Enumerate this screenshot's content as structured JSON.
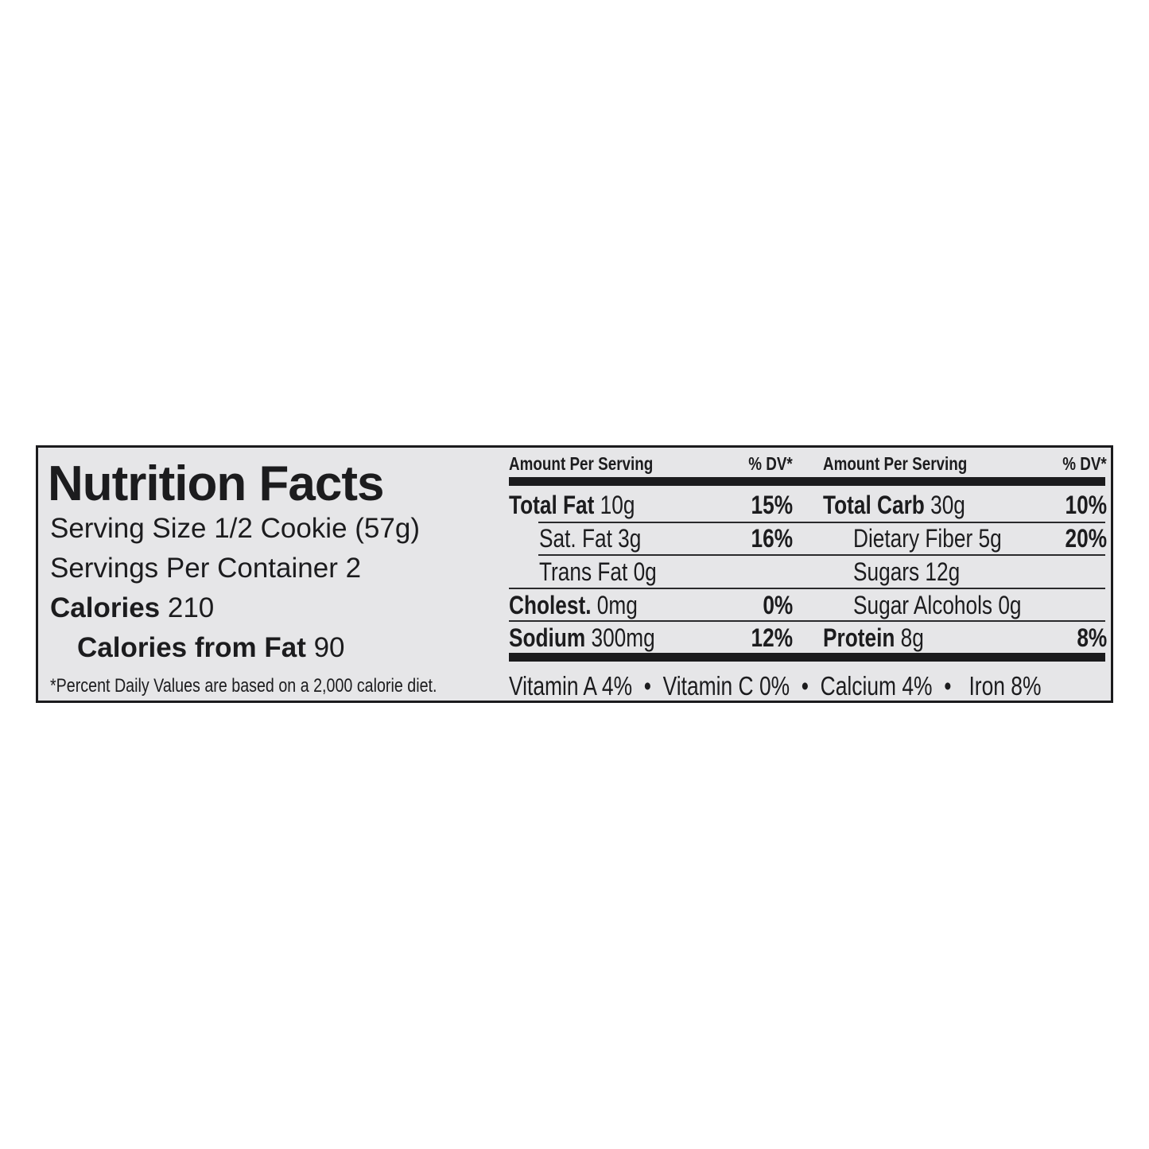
{
  "title": "Nutrition Facts",
  "serving_size": {
    "label": "Serving Size",
    "value": "1/2 Cookie (57g)"
  },
  "servings_per_container": {
    "label": "Servings Per Container",
    "value": "2"
  },
  "calories": {
    "label": "Calories",
    "value": "210"
  },
  "calories_from_fat": {
    "label": "Calories from Fat",
    "value": "90"
  },
  "footnote": "*Percent Daily Values are based on a 2,000 calorie diet.",
  "headers": {
    "amount": "Amount Per Serving",
    "dv": "% DV*"
  },
  "left_rows": [
    {
      "name": "Total Fat",
      "amount": "10g",
      "dv": "15%"
    },
    {
      "name": "Sat. Fat",
      "amount": "3g",
      "dv": "16%"
    },
    {
      "name": "Trans Fat",
      "amount": "0g",
      "dv": ""
    },
    {
      "name": "Cholest.",
      "amount": "0mg",
      "dv": "0%"
    },
    {
      "name": "Sodium",
      "amount": "300mg",
      "dv": "12%"
    }
  ],
  "right_rows": [
    {
      "name": "Total Carb",
      "amount": "30g",
      "dv": "10%"
    },
    {
      "name": "Dietary Fiber",
      "amount": "5g",
      "dv": "20%"
    },
    {
      "name": "Sugars",
      "amount": "12g",
      "dv": ""
    },
    {
      "name": "Sugar Alcohols",
      "amount": "0g",
      "dv": ""
    },
    {
      "name": "Protein",
      "amount": "8g",
      "dv": "8%"
    }
  ],
  "vitamins": "Vitamin A 4%  •  Vitamin C 0%  •  Calcium 4%  •   Iron 8%"
}
